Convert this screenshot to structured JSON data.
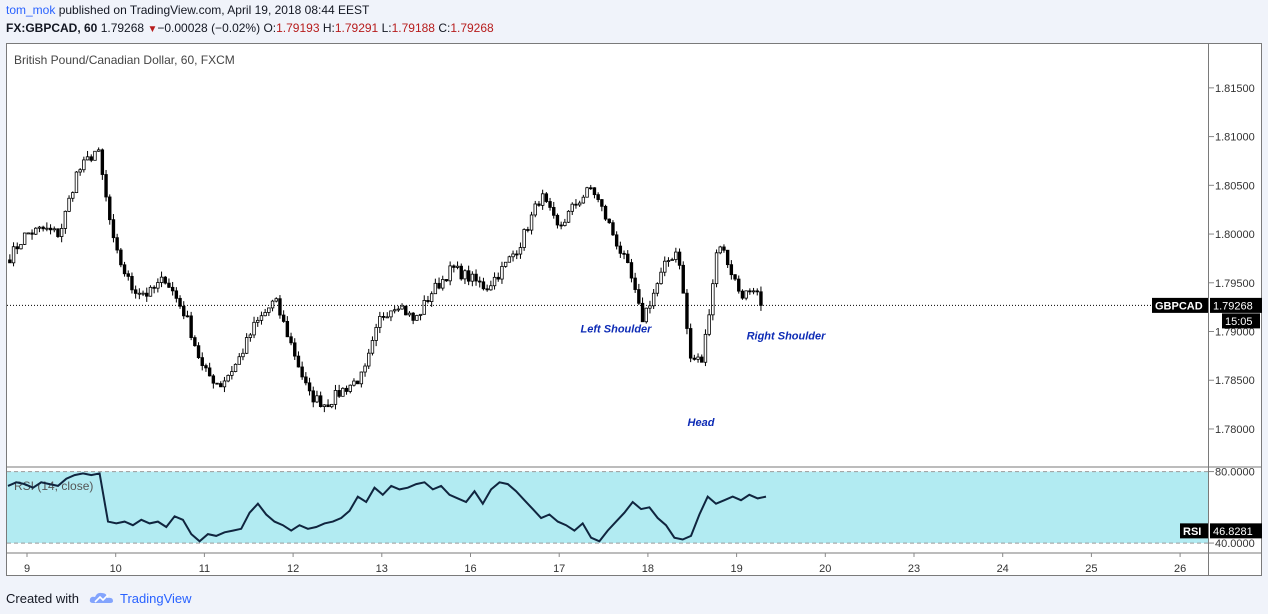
{
  "header": {
    "author": "tom_mok",
    "published_text": "published on TradingView.com, April 19, 2018 08:44 EEST",
    "symbol": "FX:GBPCAD, 60",
    "last_price": "1.79268",
    "change": "−0.00028 (−0.02%)",
    "open_label": "O:",
    "open": "1.79193",
    "high_label": "H:",
    "high": "1.79291",
    "low_label": "L:",
    "low": "1.79188",
    "close_label": "C:",
    "close": "1.79268"
  },
  "chart_title": "British Pound/Canadian Dollar, 60, FXCM",
  "price_tag": {
    "symbol": "GBPCAD",
    "value": "1.79268",
    "countdown": "15:05"
  },
  "rsi": {
    "title": "RSI (14, close)",
    "tag_label": "RSI",
    "tag_value": "46.8281",
    "upper": "80.0000",
    "lower": "40.0000"
  },
  "footer": {
    "created_with": "Created with",
    "brand": "TradingView"
  },
  "colors": {
    "band_fill": "#b2ebf2",
    "candle_up": "#ffffff",
    "candle_down": "#000000",
    "annotation": "#0d2bb5",
    "link": "#2962ff",
    "red": "#b71c1c"
  },
  "chart_data": [
    {
      "type": "candlestick",
      "title": "British Pound/Canadian Dollar, 60, FXCM",
      "xlabel": "",
      "ylabel": "",
      "x_ticks": [
        "9",
        "10",
        "11",
        "12",
        "13",
        "16",
        "17",
        "18",
        "19",
        "20",
        "23",
        "24",
        "25",
        "26"
      ],
      "y_ticks": [
        "1.81500",
        "1.81000",
        "1.80500",
        "1.80000",
        "1.79500",
        "1.79000",
        "1.78500",
        "1.78000"
      ],
      "ylim": [
        1.7762,
        1.8195
      ],
      "grid": false,
      "current_price": 1.79268,
      "annotations": [
        {
          "text": "Left Shoulder",
          "date": "17",
          "price": 1.7903
        },
        {
          "text": "Head",
          "date": "18",
          "price": 1.7807
        },
        {
          "text": "Right Shoulder",
          "date": "19",
          "price": 1.7896
        }
      ],
      "anchors": [
        [
          "9",
          1.7975
        ],
        [
          "9",
          1.8
        ],
        [
          "9",
          1.8005
        ],
        [
          "9",
          1.8
        ],
        [
          "9",
          1.8062
        ],
        [
          "10",
          1.8088
        ],
        [
          "10",
          1.7985
        ],
        [
          "10",
          1.7945
        ],
        [
          "10",
          1.7938
        ],
        [
          "10",
          1.7955
        ],
        [
          "11",
          1.7915
        ],
        [
          "11",
          1.786
        ],
        [
          "11",
          1.7845
        ],
        [
          "11",
          1.7868
        ],
        [
          "11",
          1.7905
        ],
        [
          "12",
          1.7932
        ],
        [
          "12",
          1.7885
        ],
        [
          "12",
          1.7835
        ],
        [
          "12",
          1.7825
        ],
        [
          "12",
          1.784
        ],
        [
          "13",
          1.7855
        ],
        [
          "13",
          1.7915
        ],
        [
          "13",
          1.793
        ],
        [
          "13",
          1.791
        ],
        [
          "13",
          1.794
        ],
        [
          "16",
          1.7965
        ],
        [
          "16",
          1.7955
        ],
        [
          "16",
          1.7945
        ],
        [
          "16",
          1.7965
        ],
        [
          "16",
          1.799
        ],
        [
          "17",
          1.804
        ],
        [
          "17",
          1.8005
        ],
        [
          "17",
          1.803
        ],
        [
          "17",
          1.8048
        ],
        [
          "17",
          1.801
        ],
        [
          "18",
          1.796
        ],
        [
          "18",
          1.7912
        ],
        [
          "18",
          1.794
        ],
        [
          "18",
          1.797
        ],
        [
          "18",
          1.7985
        ],
        [
          "18",
          1.7872
        ],
        [
          "18",
          1.787
        ],
        [
          "19",
          1.7995
        ],
        [
          "19",
          1.794
        ],
        [
          "19",
          1.7935
        ],
        [
          "19",
          1.7927
        ]
      ]
    },
    {
      "type": "line",
      "title": "RSI (14, close)",
      "ylim": [
        35,
        82
      ],
      "y_ticks": [
        "80.0000",
        "40.0000"
      ],
      "band": [
        40,
        80
      ],
      "last": 46.8281,
      "values": [
        72,
        74,
        73,
        71,
        74,
        73,
        72,
        76,
        78,
        79,
        78,
        79,
        52,
        51,
        52,
        50,
        53,
        51,
        52,
        49,
        55,
        53,
        45,
        41,
        45,
        44,
        46,
        47,
        48,
        57,
        62,
        56,
        52,
        50,
        47,
        50,
        48,
        49,
        51,
        52,
        54,
        58,
        66,
        63,
        71,
        67,
        72,
        70,
        71,
        73,
        74,
        70,
        72,
        67,
        65,
        63,
        69,
        62,
        70,
        74,
        73,
        69,
        64,
        59,
        54,
        56,
        52,
        50,
        47,
        51,
        43,
        41,
        47,
        52,
        57,
        63,
        59,
        60,
        54,
        50,
        43,
        42,
        44,
        56,
        66,
        62,
        64,
        66,
        64,
        67,
        65,
        66
      ]
    }
  ]
}
